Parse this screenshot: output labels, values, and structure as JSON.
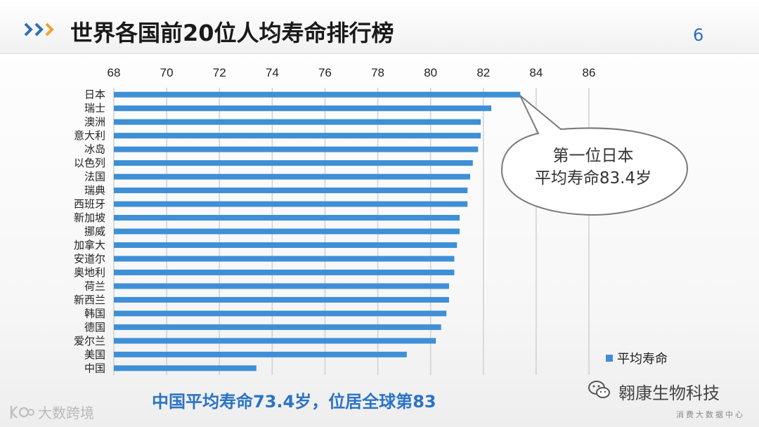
{
  "header": {
    "title": "世界各国前20位人均寿命排行榜",
    "page_number": "6"
  },
  "chart_data": {
    "type": "bar",
    "orientation": "horizontal",
    "categories": [
      "日本",
      "瑞士",
      "澳洲",
      "意大利",
      "冰岛",
      "以色列",
      "法国",
      "瑞典",
      "西班牙",
      "新加坡",
      "挪威",
      "加拿大",
      "安道尔",
      "奥地利",
      "荷兰",
      "新西兰",
      "韩国",
      "德国",
      "爱尔兰",
      "美国",
      "中国"
    ],
    "series": [
      {
        "name": "平均寿命",
        "values": [
          83.4,
          82.3,
          81.9,
          81.9,
          81.8,
          81.6,
          81.5,
          81.4,
          81.4,
          81.1,
          81.1,
          81.0,
          80.9,
          80.9,
          80.7,
          80.7,
          80.6,
          80.4,
          80.2,
          79.1,
          73.4
        ]
      }
    ],
    "xlim": [
      68,
      86
    ],
    "xticks": [
      68,
      70,
      72,
      74,
      76,
      78,
      80,
      82,
      84,
      86
    ],
    "x_axis_position": "top",
    "grid": true,
    "bar_color": "#3e8fd6",
    "legend": "bottom-right",
    "annotation": "第一位日本\n平均寿命83.4岁"
  },
  "callout": {
    "line1": "第一位日本",
    "line2": "平均寿命83.4岁"
  },
  "footnote": "中国平均寿命73.4岁，位居全球第83",
  "watermarks": {
    "left_text": "大数跨境",
    "right_title": "翱康生物科技",
    "right_subtitle": "消费大数据中心"
  },
  "colors": {
    "accent": "#2b73c4",
    "bar": "#3e8fd6",
    "chevron_blue": "#2f6fb5",
    "chevron_orange": "#f0a030"
  }
}
